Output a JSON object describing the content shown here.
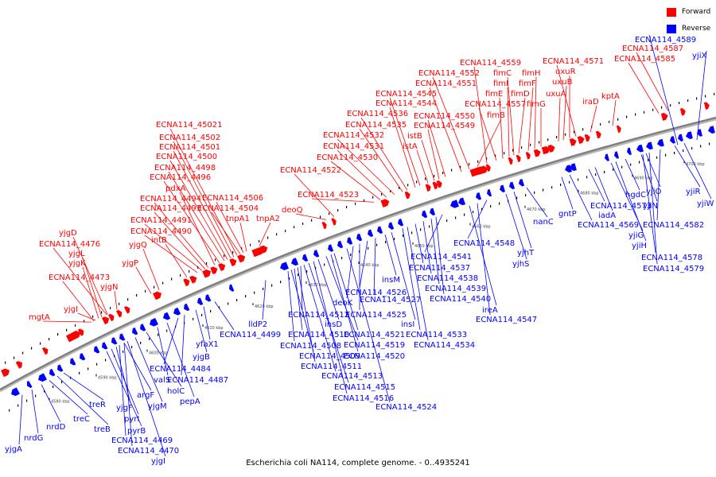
{
  "caption": "Escherichia coli NA114, complete genome. - 0..4935241",
  "legend": [
    {
      "label": "Forward",
      "color": "#ff0000"
    },
    {
      "label": "Reverse",
      "color": "#0000ff"
    }
  ],
  "colors": {
    "forward": "#ff0000",
    "reverse": "#0000ff",
    "backbone": "#808080"
  },
  "kbp_ticks": [
    "4580 kbp",
    "4590 kbp",
    "4600 kbp",
    "4610 kbp",
    "4620 kbp",
    "4630 kbp",
    "4640 kbp",
    "4650 kbp",
    "4660 kbp",
    "4670 kbp",
    "4680 kbp",
    "4690 kbp",
    "4700 kbp"
  ],
  "forward_genes": [
    "mgtA",
    "yjgI",
    "ECNA114_4473",
    "yjgK",
    "yjgL",
    "ECNA114_4476",
    "yjgD",
    "yjgN",
    "yjgP",
    "yjgQ",
    "intB",
    "ECNA114_4490",
    "ECNA114_4491",
    "ECNA114_4493",
    "ECNA114_4494",
    "pdxA",
    "ECNA114_4496",
    "ECNA114_4498",
    "ECNA114_4500",
    "ECNA114_4501",
    "ECNA114_4502",
    "ECNA114_45021",
    "ECNA114_4504",
    "ECNA114_4506",
    "tnpA1",
    "tnpA2",
    "deoQ",
    "ECNA114_4522",
    "ECNA114_4523",
    "ECNA114_4530",
    "ECNA114_4531",
    "ECNA114_4532",
    "ECNA114_4535",
    "ECNA114_4536",
    "ECNA114_4544",
    "ECNA114_4545",
    "istA",
    "istB",
    "ECNA114_4549",
    "ECNA114_4550",
    "ECNA114_4551",
    "ECNA114_4552",
    "ECNA114_4559",
    "fimB",
    "fimE",
    "fimI",
    "fimC",
    "fimD",
    "fimF",
    "fimH",
    "fimG",
    "ECNA114_4557",
    "uxuA",
    "uxuB",
    "uxuR",
    "ECNA114_4571",
    "iraD",
    "kptA",
    "ECNA114_4585",
    "ECNA114_4587"
  ],
  "reverse_genes": [
    "yjgA",
    "nrdG",
    "nrdD",
    "treC",
    "treB",
    "treR",
    "pyrB",
    "pyrI",
    "yjgF",
    "argF",
    "ECNA114_4469",
    "ECNA114_4470",
    "yjgI",
    "yjgM",
    "holC",
    "valS",
    "pepA",
    "ECNA114_4484",
    "ECNA114_4487",
    "yjgB",
    "yfaX1",
    "ECNA114_4499",
    "lldP2",
    "ECNA114_4508",
    "ECNA114_4509",
    "ECNA114_4510",
    "ECNA114_4511",
    "ECNA114_4512",
    "ECNA114_4513",
    "ECNA114_4515",
    "ECNA114_4516",
    "insD",
    "ECNA114_4519",
    "ECNA114_4520",
    "ECNA114_4521",
    "ECNA114_4524",
    "deoK",
    "ECNA114_4525",
    "ECNA114_4526",
    "ECNA114_4527",
    "insM",
    "insI",
    "ECNA114_4533",
    "ECNA114_4534",
    "ECNA114_4537",
    "ECNA114_4538",
    "ECNA114_4539",
    "ECNA114_4540",
    "ECNA114_4541",
    "ireA",
    "ECNA114_4547",
    "ECNA114_4548",
    "yjhS",
    "yjhT",
    "nanC",
    "gntP",
    "ECNA114_4569",
    "ECNA114_4573",
    "iadA",
    "yjiG",
    "yjiH",
    "hgdC",
    "yjiN",
    "yjiO",
    "ECNA114_4578",
    "ECNA114_4579",
    "ECNA114_4582",
    "yjiR",
    "yjiW",
    "yjiX",
    "ECNA114_4589"
  ]
}
